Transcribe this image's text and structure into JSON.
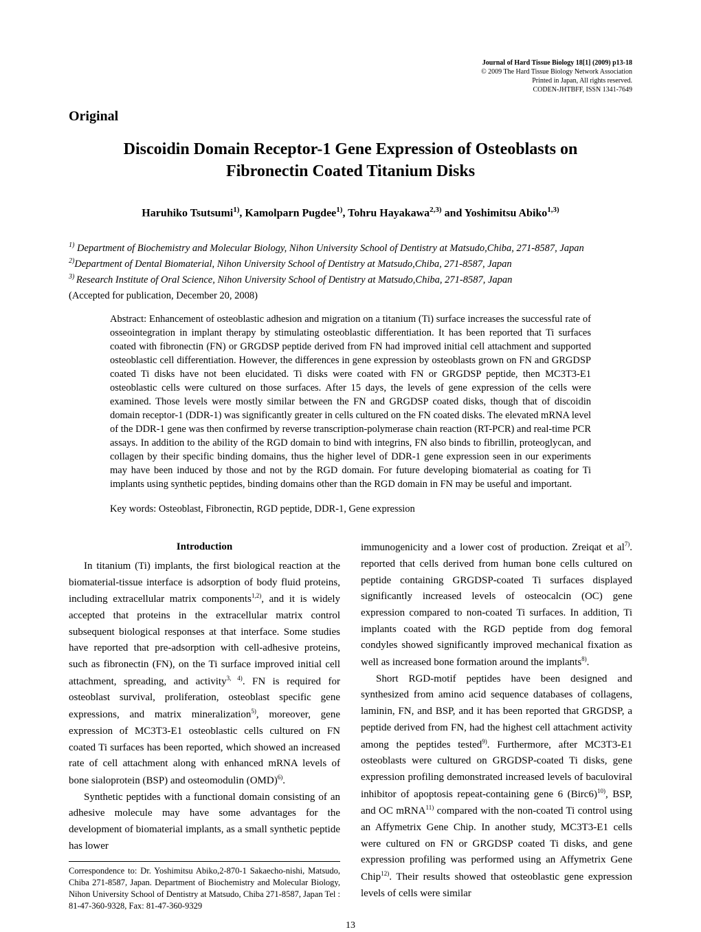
{
  "journal": {
    "line1": "Journal of Hard Tissue Biology 18[1] (2009) p13-18",
    "line2": "© 2009 The Hard Tissue Biology Network Association",
    "line3": "Printed in Japan,  All rights reserved.",
    "line4": "CODEN-JHTBFF, ISSN 1341-7649"
  },
  "section_label": "Original",
  "title_line1": "Discoidin Domain Receptor-1 Gene Expression of Osteoblasts on",
  "title_line2": "Fibronectin Coated Titanium Disks",
  "authors_html": "Haruhiko Tsutsumi<sup>1)</sup>, Kamolparn Pugdee<sup>1)</sup>, Tohru Hayakawa<sup>2,3)</sup> and Yoshimitsu Abiko<sup>1,3)</sup>",
  "affiliations": {
    "a1": " Department of Biochemistry and Molecular Biology, Nihon University School of Dentistry at Matsudo,Chiba, 271-8587, Japan",
    "a2_html": "Department of Dental Biomaterial<span style=\"font-style:normal\">,</span> Nihon University School of Dentistry at Matsudo,Chiba, 271-8587, Japan",
    "a3": "Research Institute of Oral Science, Nihon University School of Dentistry at Matsudo,Chiba, 271-8587, Japan"
  },
  "accepted": "(Accepted for publication, December 20, 2008)",
  "abstract": "Abstract: Enhancement of osteoblastic adhesion and migration on a titanium (Ti) surface increases the successful rate of osseointegration in implant therapy by stimulating osteoblastic differentiation. It has been reported that Ti surfaces coated with fibronectin (FN) or GRGDSP peptide derived from FN had improved initial cell attachment and supported osteoblastic cell differentiation. However, the differences in gene expression by osteoblasts grown on FN and GRGDSP coated Ti disks have not been elucidated. Ti disks were coated with FN or GRGDSP peptide, then MC3T3-E1 osteoblastic cells were cultured on those surfaces. After 15 days, the levels of gene expression of the cells were examined. Those levels were mostly similar between the FN and GRGDSP coated disks, though that of discoidin domain receptor-1 (DDR-1) was significantly greater in cells cultured on the FN coated disks. The elevated mRNA level of the DDR-1 gene was then confirmed by reverse transcription-polymerase chain reaction (RT-PCR) and real-time PCR assays. In addition to the ability of the RGD domain to bind with integrins, FN also binds to fibrillin, proteoglycan, and collagen by their specific binding domains, thus the higher level of DDR-1 gene expression seen in our experiments may have been induced by those and not by the RGD domain. For future developing biomaterial as coating for Ti implants using synthetic peptides, binding domains other than the RGD domain in FN may be useful and important.",
  "keywords": "Key words: Osteoblast, Fibronectin, RGD peptide, DDR-1, Gene expression",
  "intro_heading": "Introduction",
  "col1": {
    "p1_html": " In titanium (Ti) implants, the first biological reaction at the biomaterial-tissue interface is adsorption of body fluid proteins, including extracellular matrix components<sup>1,2)</sup>, and it is widely accepted that proteins in the extracellular matrix control subsequent biological responses at that interface. Some studies have reported that pre-adsorption with cell-adhesive proteins, such as fibronectin (FN), on the Ti surface improved initial cell attachment, spreading, and activity<sup>3, 4)</sup>. FN is required for osteoblast survival, proliferation, osteoblast specific gene expressions, and matrix mineralization<sup>5)</sup>, moreover, gene expression of MC3T3-E1 osteoblastic cells cultured on FN coated Ti surfaces has been reported, which showed an increased rate of cell attachment along with enhanced mRNA levels of bone sialoprotein (BSP) and osteomodulin (OMD)<sup>6)</sup>.",
    "p2": "Synthetic peptides with a functional domain consisting of an adhesive molecule may have some advantages for the development of biomaterial implants, as a small synthetic peptide has lower"
  },
  "col2": {
    "p1_html": "immunogenicity and a lower cost of production. Zreiqat et al<sup>7)</sup>. reported that cells derived from human bone cells cultured on peptide containing GRGDSP-coated Ti surfaces displayed significantly increased levels of osteocalcin (OC) gene expression compared to non-coated Ti surfaces. In addition, Ti implants coated with the RGD peptide from dog femoral condyles showed significantly improved mechanical fixation as well as increased bone formation around the implants<sup>8)</sup>.",
    "p2_html": "Short RGD-motif peptides have been designed and synthesized from amino acid sequence databases of collagens, laminin, FN, and BSP, and it has been reported that GRGDSP, a peptide derived from FN, had the highest cell attachment activity among the peptides tested<sup>9)</sup>. Furthermore, after MC3T3-E1 osteoblasts were cultured on GRGDSP-coated Ti disks, gene expression profiling demonstrated increased levels of baculoviral inhibitor of apoptosis repeat-containing gene 6 (Birc6)<sup>10)</sup>, BSP, and OC mRNA<sup>11)</sup> compared with the non-coated Ti control using an Affymetrix Gene Chip. In another study, MC3T3-E1 cells were cultured on FN or GRGDSP coated Ti disks, and gene expression profiling was performed using an Affymetrix Gene Chip<sup>12)</sup>. Their results showed that osteoblastic gene expression levels of cells were similar"
  },
  "correspondence": "Correspondence to: Dr. Yoshimitsu Abiko,2-870-1 Sakaecho-nishi, Matsudo, Chiba 271-8587, Japan. Department of Biochemistry and Molecular Biology, Nihon University School of Dentistry at Matsudo, Chiba 271-8587, Japan   Tel : 81-47-360-9328,   Fax: 81-47-360-9329",
  "page_number": "13",
  "colors": {
    "background": "#ffffff",
    "text": "#000000"
  },
  "typography": {
    "body_family": "Times New Roman",
    "title_size_pt": 18,
    "body_size_pt": 11,
    "journal_info_size_pt": 8
  }
}
